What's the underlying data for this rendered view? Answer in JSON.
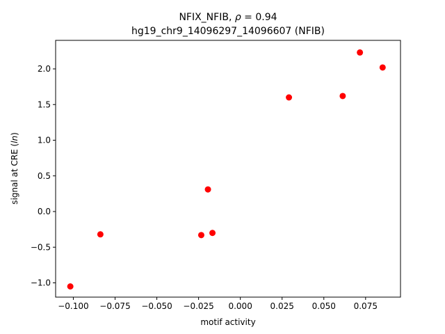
{
  "chart_data": {
    "type": "scatter",
    "title_line1_prefix": "NFIX_NFIB, ",
    "title_line1_rho": "ρ",
    "title_line1_suffix": " = 0.94",
    "title_line2": "hg19_chr9_14096297_14096607 (NFIB)",
    "xlabel": "motif activity",
    "ylabel_prefix": "signal at CRE (",
    "ylabel_italic": "ln",
    "ylabel_suffix": ")",
    "xlim": [
      -0.1106,
      0.0959
    ],
    "ylim": [
      -1.2,
      2.4
    ],
    "xticks": [
      -0.1,
      -0.075,
      -0.05,
      -0.025,
      0.0,
      0.025,
      0.05,
      0.075
    ],
    "xtick_labels": [
      "−0.100",
      "−0.075",
      "−0.050",
      "−0.025",
      "0.000",
      "0.025",
      "0.050",
      "0.075"
    ],
    "yticks": [
      -1.0,
      -0.5,
      0.0,
      0.5,
      1.0,
      1.5,
      2.0
    ],
    "ytick_labels": [
      "−1.0",
      "−0.5",
      "0.0",
      "0.5",
      "1.0",
      "1.5",
      "2.0"
    ],
    "grid": false,
    "marker_color": "#ff0000",
    "points": [
      {
        "x": -0.1018,
        "y": -1.05
      },
      {
        "x": -0.0838,
        "y": -0.32
      },
      {
        "x": -0.0234,
        "y": -0.33
      },
      {
        "x": -0.0167,
        "y": -0.3
      },
      {
        "x": -0.0194,
        "y": 0.31
      },
      {
        "x": 0.0291,
        "y": 1.6
      },
      {
        "x": 0.0613,
        "y": 1.62
      },
      {
        "x": 0.0716,
        "y": 2.23
      },
      {
        "x": 0.0852,
        "y": 2.02
      }
    ]
  }
}
